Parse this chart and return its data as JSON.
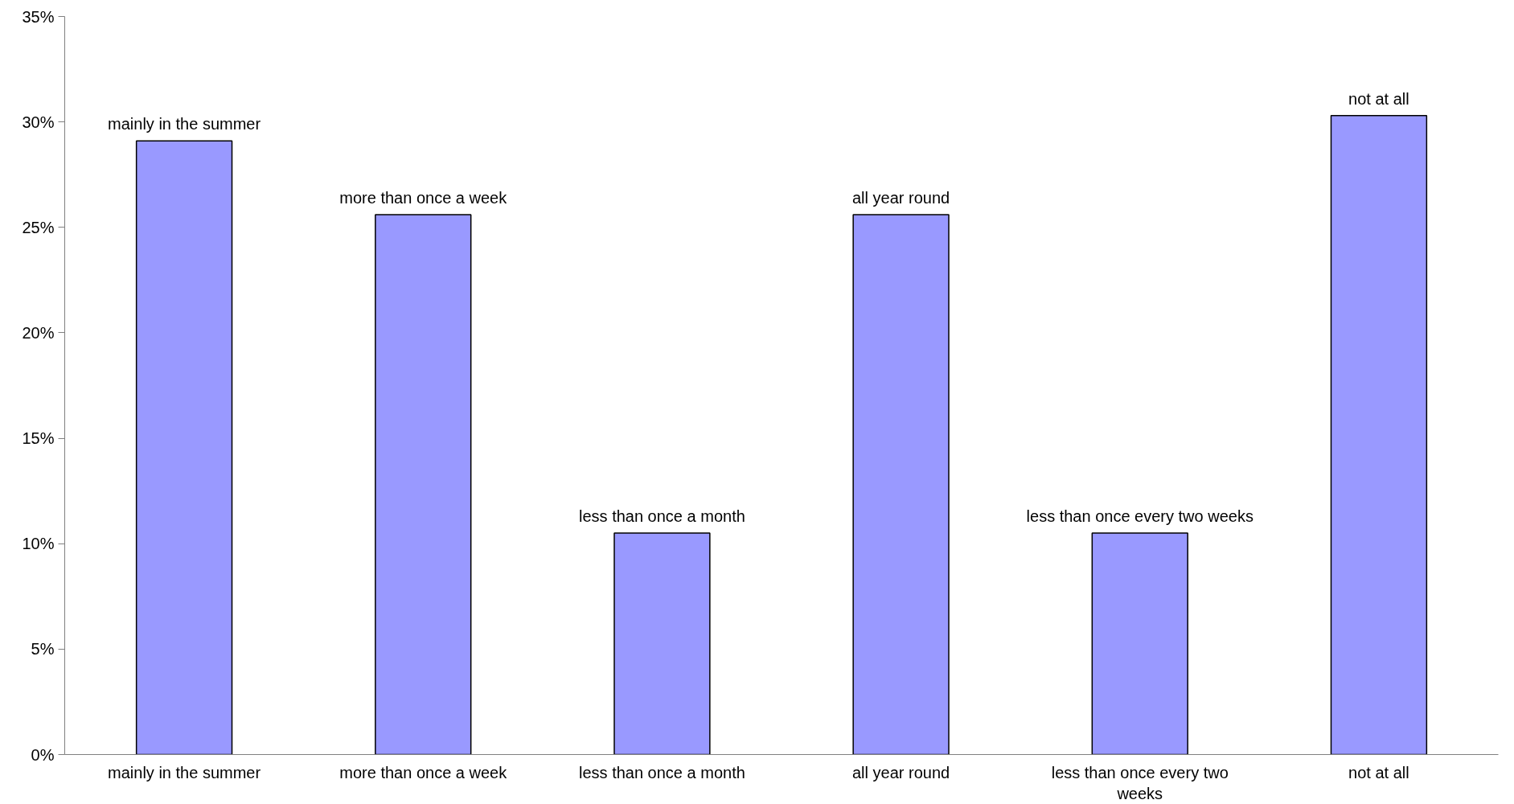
{
  "chart_data": {
    "type": "bar",
    "categories": [
      "mainly in the summer",
      "more than once a week",
      "less than once a month",
      "all year round",
      "less than once every two weeks",
      "not at all"
    ],
    "values": [
      29.1,
      25.6,
      10.5,
      25.6,
      10.5,
      30.3
    ],
    "color": "#9999ff",
    "ylim": [
      0,
      35
    ],
    "yticks": [
      {
        "value": 0,
        "label": "0%"
      },
      {
        "value": 5,
        "label": "5%"
      },
      {
        "value": 10,
        "label": "10%"
      },
      {
        "value": 15,
        "label": "15%"
      },
      {
        "value": 20,
        "label": "20%"
      },
      {
        "value": 25,
        "label": "25%"
      },
      {
        "value": 30,
        "label": "30%"
      },
      {
        "value": 35,
        "label": "35%"
      }
    ],
    "grid": false,
    "annotations": [
      {
        "text": "mainly in the summer",
        "x": "mainly in the summer",
        "y": 29.1
      },
      {
        "text": "more than once a week",
        "x": "more than once a week",
        "y": 25.6
      },
      {
        "text": "less than once a month",
        "x": "less than once a month",
        "y": 10.5
      },
      {
        "text": "all year round",
        "x": "all year round",
        "y": 25.6
      },
      {
        "text": "less than once every two weeks",
        "x": "less than once every two weeks",
        "y": 10.5
      },
      {
        "text": "not at all",
        "x": "not at all",
        "y": 30.3
      }
    ]
  }
}
